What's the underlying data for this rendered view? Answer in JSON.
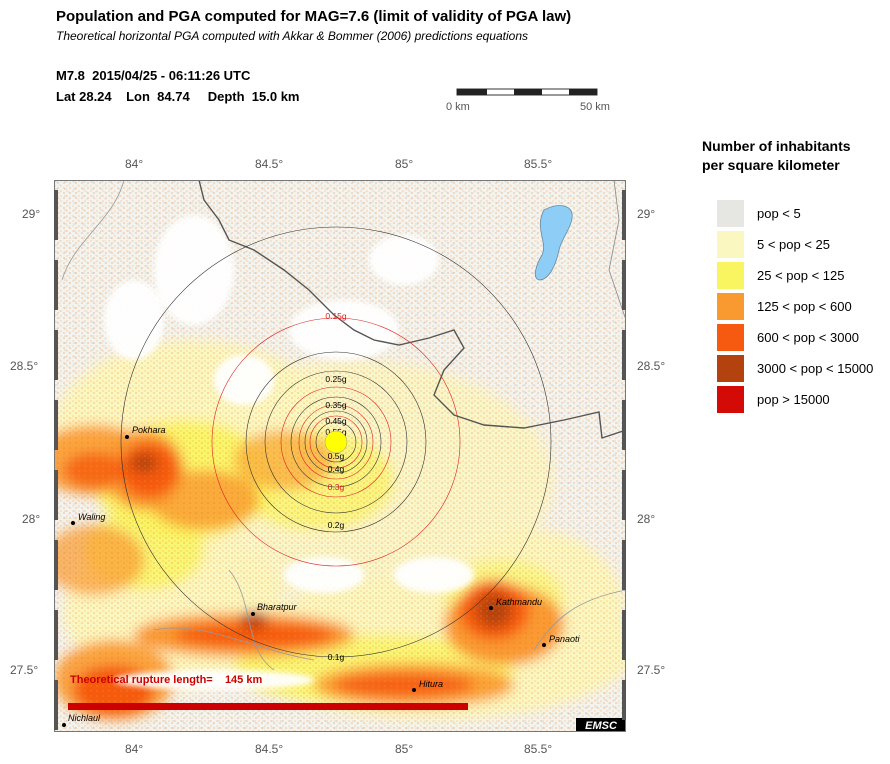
{
  "header": {
    "title": "Population and PGA computed for MAG=7.6 (limit of validity of PGA law)",
    "subtitle": "Theoretical horizontal PGA computed with Akkar & Bommer (2006) predictions equations",
    "event_line": "M7.8  2015/04/25 - 06:11:26 UTC",
    "location_line": "Lat 28.24    Lon  84.74     Depth  15.0 km"
  },
  "scalebar": {
    "left_label": "0 km",
    "right_label": "50 km"
  },
  "axes": {
    "x_ticks": [
      "84°",
      "84.5°",
      "85°",
      "85.5°"
    ],
    "y_ticks": [
      "29°",
      "28.5°",
      "28°",
      "27.5°"
    ]
  },
  "legend": {
    "title_line1": "Number of inhabitants",
    "title_line2": "per square kilometer",
    "items": [
      {
        "label": "pop < 5",
        "color": "#e6e6e2"
      },
      {
        "label": "5 < pop < 25",
        "color": "#fbf7c0"
      },
      {
        "label": "25 < pop < 125",
        "color": "#f9f560"
      },
      {
        "label": "125 < pop < 600",
        "color": "#f99a30"
      },
      {
        "label": "600 < pop < 3000",
        "color": "#f55a10"
      },
      {
        "label": "3000 < pop < 15000",
        "color": "#b4420e"
      },
      {
        "label": "pop > 15000",
        "color": "#d40a06"
      }
    ]
  },
  "map": {
    "pga_labels": [
      "0.15g",
      "0.25g",
      "0.35g",
      "0.45g",
      "0.55g",
      "0.5g",
      "0.4g",
      "0.3g",
      "0.2g",
      "0.1g"
    ],
    "cities": [
      "Pokhara",
      "Waling",
      "Bharatpur",
      "Kathmandu",
      "Panaoti",
      "Hitura",
      "Nichlaul"
    ],
    "rupture_text": "Theoretical rupture length=    145 km",
    "logo": "EMSC",
    "epicenter": {
      "lat": 28.24,
      "lon": 84.74
    },
    "colors": {
      "rupture": "#cc0000",
      "epicenter": "#ffff00",
      "lake": "#8ecdf5",
      "pga_red": "#e02020"
    }
  }
}
